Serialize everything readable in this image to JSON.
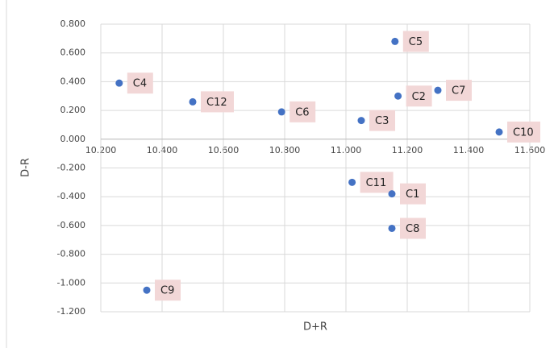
{
  "chart_data": {
    "type": "scatter",
    "xlabel": "D+R",
    "ylabel": "D-R",
    "labels": [
      "C4",
      "C12",
      "C6",
      "C3",
      "C5",
      "C2",
      "C7",
      "C10",
      "C11",
      "C1",
      "C8",
      "C9"
    ],
    "x": [
      10.26,
      10.5,
      10.79,
      11.05,
      11.16,
      11.17,
      11.3,
      11.5,
      11.02,
      11.15,
      11.15,
      10.35
    ],
    "values": [
      0.39,
      0.26,
      0.19,
      0.13,
      0.68,
      0.3,
      0.34,
      0.05,
      -0.3,
      -0.38,
      -0.62,
      -1.05
    ],
    "color": "#4472c4",
    "label_color": "#f2d7d7",
    "xlim": [
      10.2,
      11.6
    ],
    "xticks": [
      {
        "value": 10.2,
        "label": "10.200"
      },
      {
        "value": 10.4,
        "label": "10.400"
      },
      {
        "value": 10.6,
        "label": "10.600"
      },
      {
        "value": 10.8,
        "label": "10.800"
      },
      {
        "value": 11.0,
        "label": "11.000"
      },
      {
        "value": 11.2,
        "label": "11.200"
      },
      {
        "value": 11.4,
        "label": "11.400"
      },
      {
        "value": 11.6,
        "label": "11.600"
      }
    ],
    "ylim": [
      -1.2,
      0.8
    ],
    "yticks": [
      {
        "value": 0.8,
        "label": "0.800"
      },
      {
        "value": 0.6,
        "label": "0.600"
      },
      {
        "value": 0.4,
        "label": "0.400"
      },
      {
        "value": 0.2,
        "label": "0.200"
      },
      {
        "value": 0,
        "label": "0.000"
      },
      {
        "value": -0.2,
        "label": "-0.200"
      },
      {
        "value": -0.4,
        "label": "-0.400"
      },
      {
        "value": -0.6,
        "label": "-0.600"
      },
      {
        "value": -0.8,
        "label": "-0.800"
      },
      {
        "value": -1.0,
        "label": "-1.000"
      },
      {
        "value": -1.2,
        "label": "-1.200"
      }
    ],
    "grid": true
  }
}
